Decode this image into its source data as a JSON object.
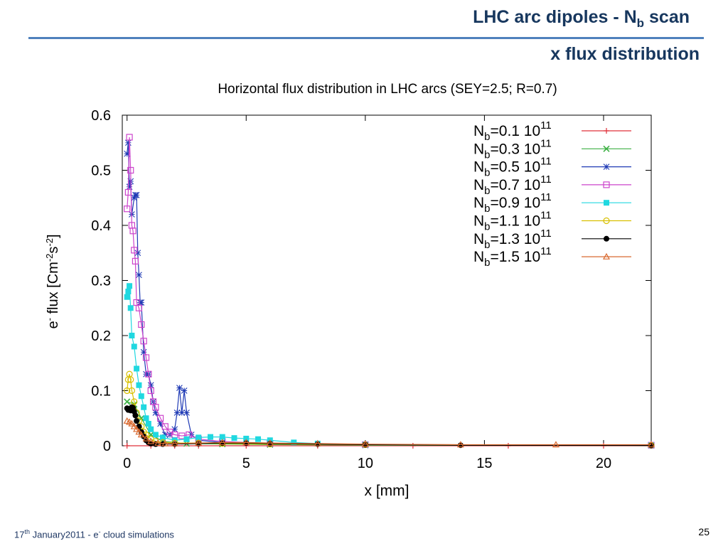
{
  "slide": {
    "title_prefix": "LHC arc dipoles - N",
    "title_sub": "b",
    "title_suffix": " scan",
    "subtitle": "x flux distribution",
    "footer_day": "17",
    "footer_sup": "th",
    "footer_rest": " January2011  -  e",
    "footer_sup2": "-",
    "footer_rest2": " cloud simulations",
    "page_number": "25",
    "accent_color": "#17375e",
    "rule_color": "#4f81bd"
  },
  "chart_data": {
    "type": "line",
    "title": "Horizontal flux distribution in LHC arcs (SEY=2.5; R=0.7)",
    "xlabel": "x [mm]",
    "ylabel": "e- flux [Cm-2s-2]",
    "xlim": [
      -0.2,
      22
    ],
    "ylim": [
      0,
      0.6
    ],
    "x_ticks": [
      "0",
      "5",
      "10",
      "15",
      "20"
    ],
    "y_ticks": [
      "0",
      "0.1",
      "0.2",
      "0.3",
      "0.4",
      "0.5",
      "0.6"
    ],
    "grid": false,
    "legend_position": "top-right",
    "series": [
      {
        "name": "Nb=0.1 10^11",
        "label_main": "0.1 10",
        "color": "#e0303a",
        "marker": "plus",
        "x": [
          0,
          1,
          2,
          3,
          5,
          8,
          12,
          16,
          20,
          22
        ],
        "y": [
          0,
          0,
          0,
          0,
          0,
          0,
          0,
          0,
          0,
          0
        ]
      },
      {
        "name": "Nb=0.3 10^11",
        "label_main": "0.3 10",
        "color": "#3cb043",
        "marker": "cross",
        "x": [
          0,
          0.3,
          0.6,
          1.0,
          1.5,
          2.5,
          4,
          6,
          10,
          22
        ],
        "y": [
          0.08,
          0.075,
          0.05,
          0.02,
          0.008,
          0.004,
          0.003,
          0.002,
          0.001,
          0.0005
        ]
      },
      {
        "name": "Nb=0.5 10^11",
        "label_main": "0.5 10",
        "color": "#1f3ab5",
        "marker": "star",
        "x": [
          0,
          0.05,
          0.1,
          0.15,
          0.2,
          0.3,
          0.35,
          0.4,
          0.45,
          0.5,
          0.55,
          0.6,
          0.7,
          0.8,
          0.9,
          1.0,
          1.1,
          1.2,
          1.4,
          1.6,
          1.8,
          2.0,
          2.1,
          2.2,
          2.3,
          2.4,
          2.5,
          2.7,
          3.0,
          4.0,
          6.0,
          10,
          22
        ],
        "y": [
          0.53,
          0.55,
          0.47,
          0.48,
          0.42,
          0.45,
          0.455,
          0.455,
          0.35,
          0.31,
          0.26,
          0.26,
          0.17,
          0.13,
          0.13,
          0.11,
          0.08,
          0.06,
          0.04,
          0.02,
          0.02,
          0.03,
          0.06,
          0.105,
          0.06,
          0.1,
          0.06,
          0.02,
          0.01,
          0.006,
          0.003,
          0.002,
          0.001
        ]
      },
      {
        "name": "Nb=0.7 10^11",
        "label_main": "0.7 10",
        "color": "#cc44cc",
        "marker": "square",
        "x": [
          0,
          0.05,
          0.1,
          0.15,
          0.2,
          0.25,
          0.3,
          0.35,
          0.4,
          0.5,
          0.6,
          0.7,
          0.8,
          0.9,
          1.0,
          1.1,
          1.2,
          1.4,
          1.6,
          1.8,
          2.0,
          2.3,
          2.6,
          3.0,
          4.0,
          6.0,
          10,
          22
        ],
        "y": [
          0.43,
          0.46,
          0.56,
          0.5,
          0.4,
          0.39,
          0.355,
          0.335,
          0.26,
          0.25,
          0.22,
          0.19,
          0.16,
          0.13,
          0.1,
          0.08,
          0.07,
          0.05,
          0.035,
          0.025,
          0.02,
          0.018,
          0.02,
          0.012,
          0.008,
          0.004,
          0.002,
          0.001
        ]
      },
      {
        "name": "Nb=0.9 10^11",
        "label_main": "0.9 10",
        "color": "#20d8e0",
        "marker": "filled-square",
        "x": [
          0,
          0.05,
          0.1,
          0.15,
          0.2,
          0.3,
          0.4,
          0.5,
          0.6,
          0.7,
          0.8,
          0.9,
          1.0,
          1.2,
          1.5,
          2.0,
          2.5,
          3.0,
          3.5,
          4.0,
          4.5,
          5.0,
          5.5,
          6.0,
          7.0,
          8.0,
          10,
          22
        ],
        "y": [
          0.27,
          0.28,
          0.29,
          0.25,
          0.2,
          0.18,
          0.14,
          0.11,
          0.09,
          0.07,
          0.05,
          0.04,
          0.03,
          0.02,
          0.015,
          0.01,
          0.012,
          0.015,
          0.016,
          0.016,
          0.014,
          0.013,
          0.012,
          0.01,
          0.006,
          0.004,
          0.002,
          0.001
        ]
      },
      {
        "name": "Nb=1.1 10^11",
        "label_main": "1.1 10",
        "color": "#d8c000",
        "marker": "circle",
        "x": [
          0,
          0.05,
          0.1,
          0.15,
          0.2,
          0.3,
          0.4,
          0.5,
          0.6,
          0.7,
          0.8,
          1.0,
          1.2,
          1.5,
          2.0,
          3.0,
          4.0,
          6.0,
          10,
          22
        ],
        "y": [
          0.1,
          0.12,
          0.13,
          0.12,
          0.1,
          0.08,
          0.06,
          0.045,
          0.035,
          0.025,
          0.02,
          0.012,
          0.008,
          0.006,
          0.005,
          0.005,
          0.004,
          0.003,
          0.002,
          0.001
        ]
      },
      {
        "name": "Nb=1.3 10^11",
        "label_main": "1.3 10",
        "color": "#000000",
        "marker": "filled-circle",
        "x": [
          0,
          0.05,
          0.1,
          0.15,
          0.2,
          0.25,
          0.3,
          0.35,
          0.4,
          0.5,
          0.6,
          0.7,
          0.8,
          0.9,
          1.0,
          1.2,
          1.5,
          2.0,
          3.0,
          4.0,
          5.0,
          6.0,
          8.0,
          10,
          14,
          22
        ],
        "y": [
          0.068,
          0.065,
          0.067,
          0.064,
          0.07,
          0.069,
          0.062,
          0.055,
          0.045,
          0.035,
          0.025,
          0.017,
          0.01,
          0.006,
          0.004,
          0.003,
          0.003,
          0.003,
          0.004,
          0.005,
          0.005,
          0.004,
          0.003,
          0.002,
          0.001,
          0.0005
        ]
      },
      {
        "name": "Nb=1.5 10^11",
        "label_main": "1.5 10",
        "color": "#d96a30",
        "marker": "triangle",
        "x": [
          0,
          0.1,
          0.2,
          0.3,
          0.4,
          0.5,
          0.6,
          0.8,
          1.0,
          1.3,
          1.6,
          2.0,
          3.0,
          4.0,
          5.0,
          6.0,
          8.0,
          10,
          14,
          18,
          22
        ],
        "y": [
          0.045,
          0.043,
          0.04,
          0.035,
          0.03,
          0.025,
          0.02,
          0.013,
          0.008,
          0.005,
          0.004,
          0.004,
          0.005,
          0.006,
          0.006,
          0.005,
          0.004,
          0.003,
          0.002,
          0.002,
          0.002
        ]
      }
    ]
  }
}
